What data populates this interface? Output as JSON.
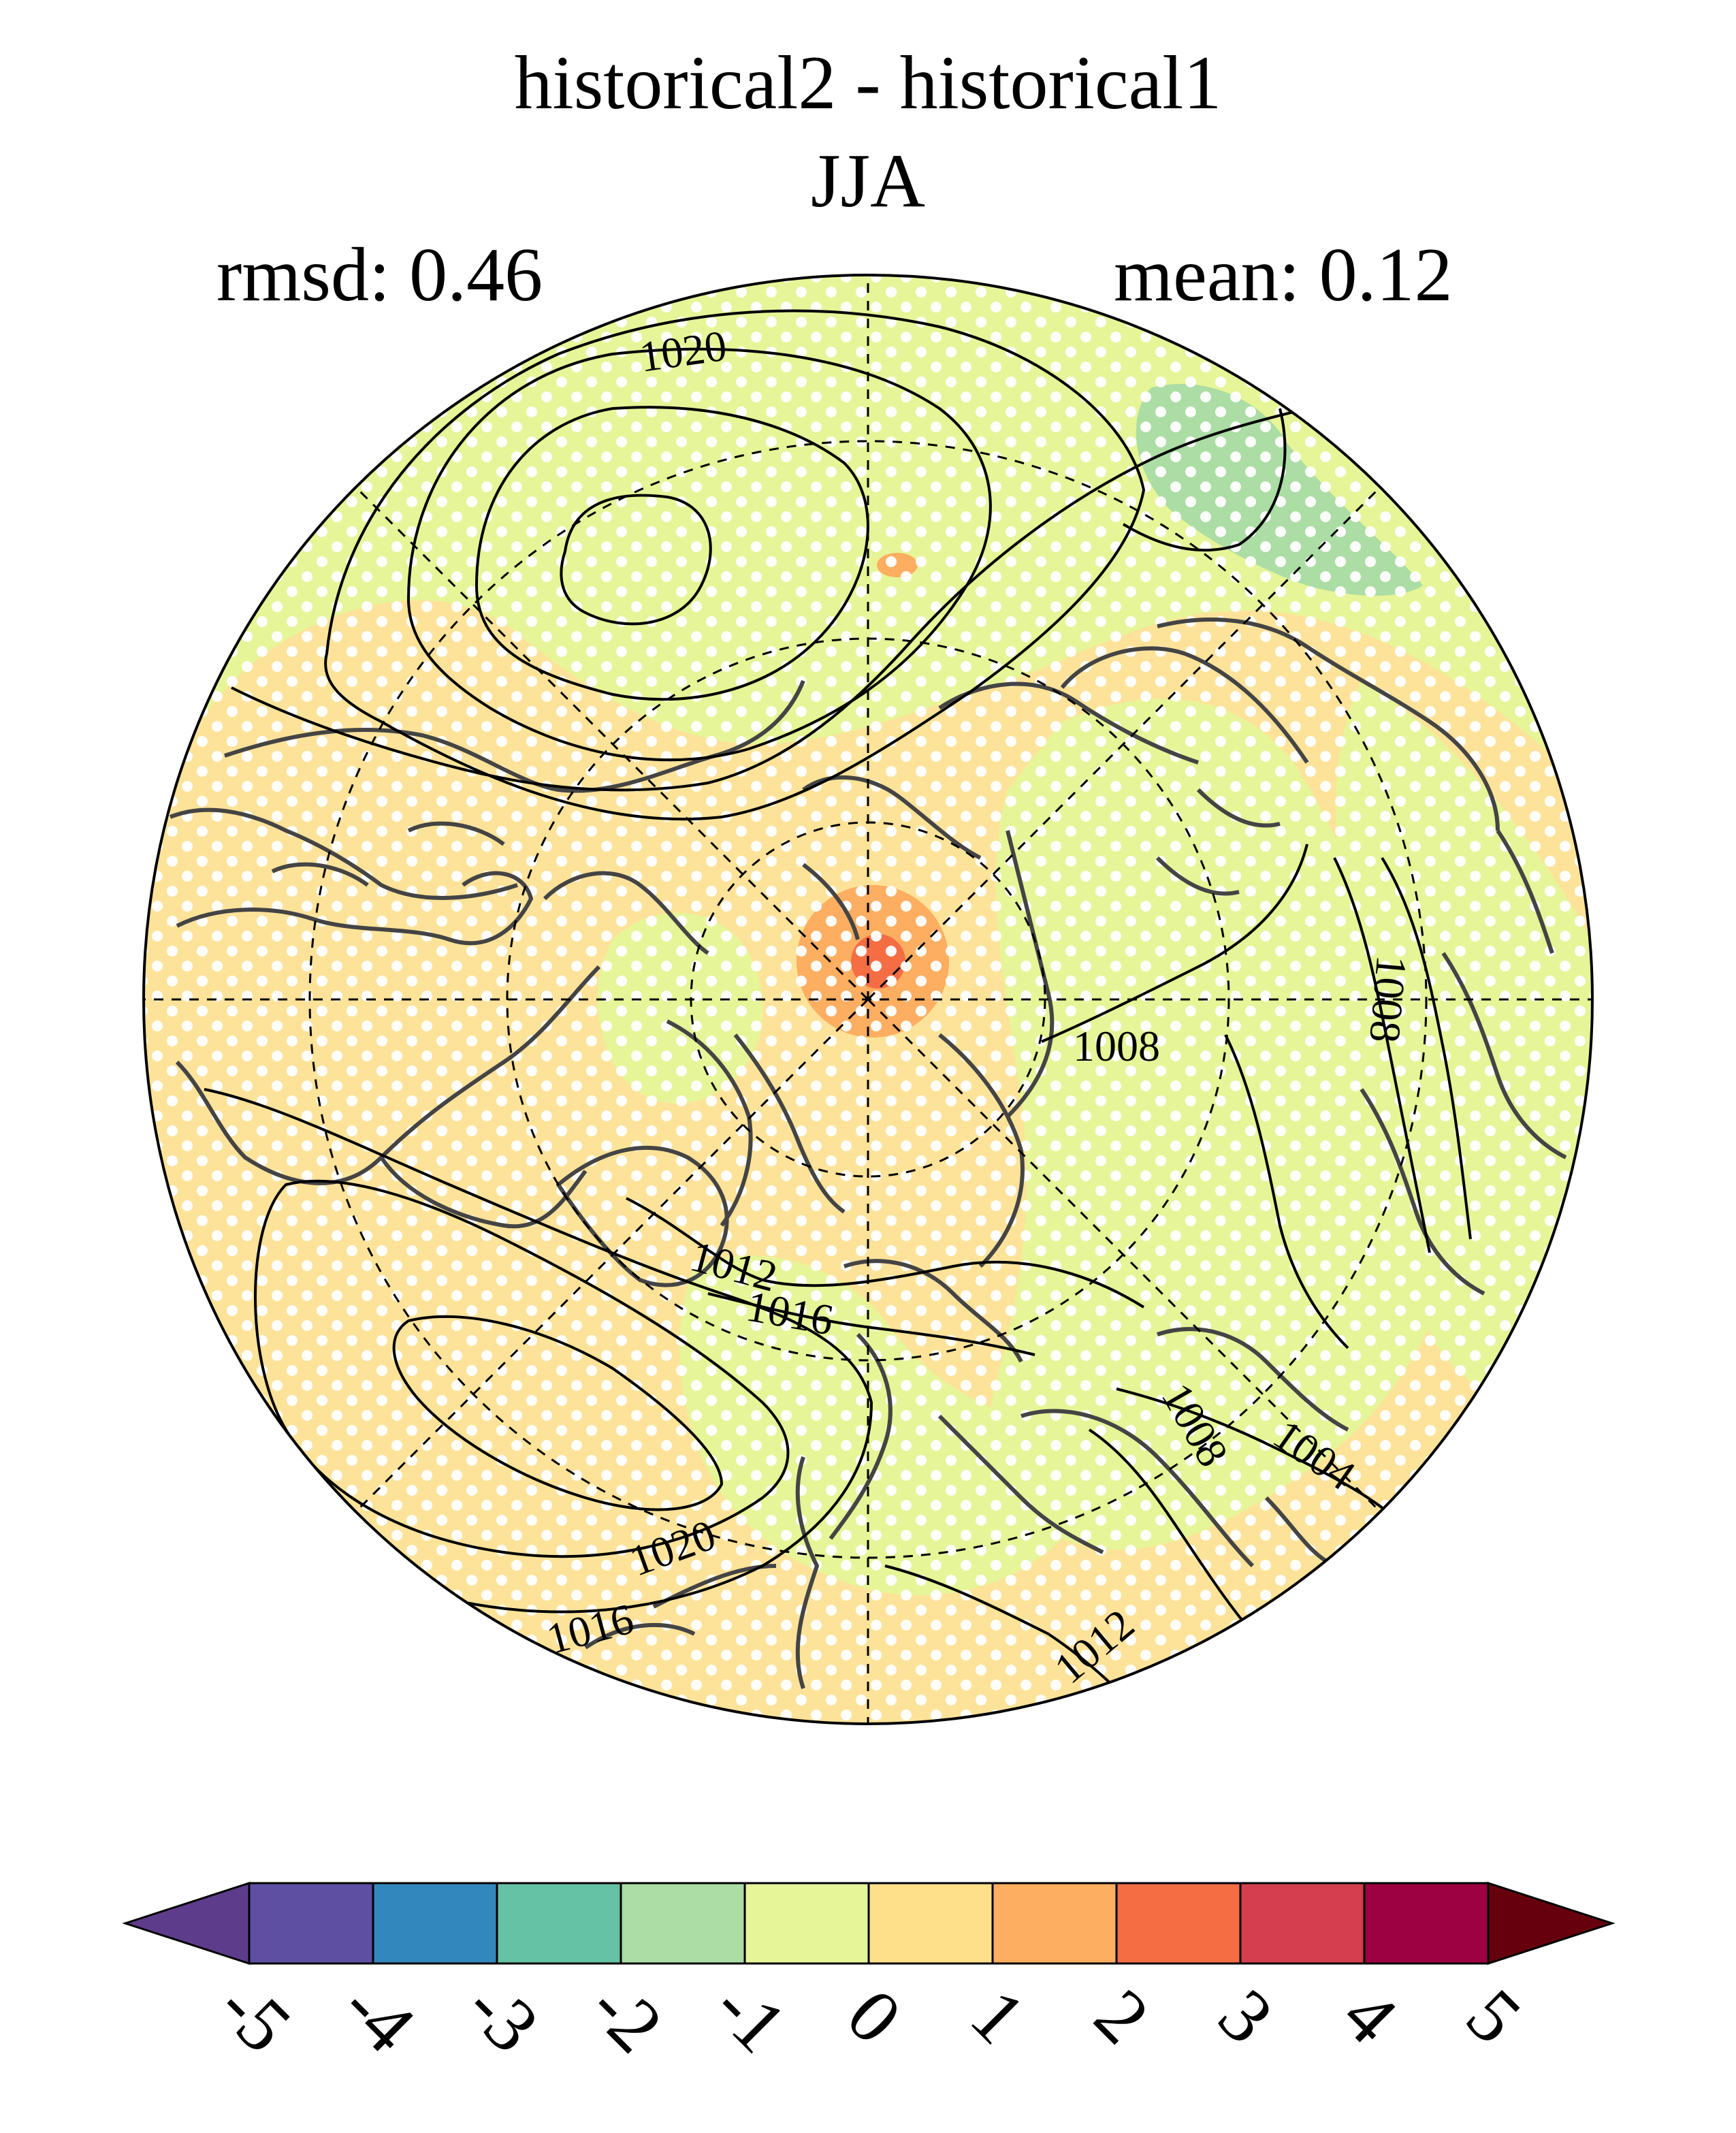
{
  "title": {
    "line1": "historical2 - historical1",
    "line2": "JJA"
  },
  "stats": {
    "rmsd": "rmsd: 0.46",
    "mean": "mean: 0.12"
  },
  "colors": {
    "ocean_background": "#fde39a",
    "neutral": "#e6f598",
    "positive_1": "#fee08b",
    "positive_2": "#fdae61",
    "positive_3": "#f46d43",
    "negative_2": "#abdda4",
    "coastline": "#444444",
    "stipple": "#ffffff"
  },
  "map": {
    "projection": "north polar stereographic",
    "field": "sea level pressure difference (hPa)",
    "contour_labels": [
      {
        "id": "c1020-top",
        "text": "1020"
      },
      {
        "id": "c1008-east",
        "text": "1008"
      },
      {
        "id": "c1008-far-east",
        "text": "1008"
      },
      {
        "id": "c1012-mid",
        "text": "1012"
      },
      {
        "id": "c1016-mid",
        "text": "1016"
      },
      {
        "id": "c1008-south",
        "text": "1008"
      },
      {
        "id": "c1004-south",
        "text": "1004"
      },
      {
        "id": "c1020-south",
        "text": "1020"
      },
      {
        "id": "c1016-south",
        "text": "1016"
      },
      {
        "id": "c1012-south",
        "text": "1012"
      }
    ]
  },
  "colorbar": {
    "extend": "both",
    "colors": [
      "#5e3c99",
      "#5e4fa2",
      "#3288bd",
      "#66c2a5",
      "#abdda4",
      "#e6f598",
      "#fee08b",
      "#fdae61",
      "#f46d43",
      "#d53e4f",
      "#9e0142",
      "#6b0010",
      "#6b0010"
    ],
    "low_arrow_color": "#5e3c8c",
    "high_arrow_color": "#67000d",
    "segments": [
      "#5e4fa2",
      "#3288bd",
      "#66c2a5",
      "#abdda4",
      "#e6f598",
      "#fee08b",
      "#fdae61",
      "#f46d43",
      "#d53e4f",
      "#9e0142"
    ],
    "ticks": [
      "-5",
      "-4",
      "-3",
      "-2",
      "-1",
      "0",
      "1",
      "2",
      "3",
      "4",
      "5"
    ]
  }
}
